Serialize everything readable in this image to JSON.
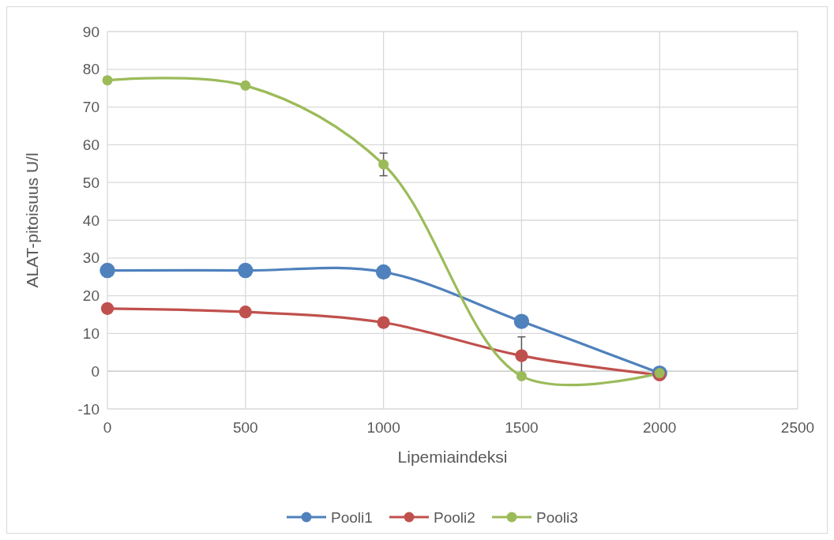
{
  "chart_data": {
    "type": "line",
    "xlabel": "Lipemiaindeksi",
    "ylabel": "ALAT-pitoisuus U/l",
    "x": [
      0,
      500,
      1000,
      1500,
      2000
    ],
    "xlim": [
      0,
      2500
    ],
    "xticks": [
      0,
      500,
      1000,
      1500,
      2000,
      2500
    ],
    "ylim": [
      -10,
      90
    ],
    "yticks": [
      -10,
      0,
      10,
      20,
      30,
      40,
      50,
      60,
      70,
      80,
      90
    ],
    "grid": true,
    "legend": "bottom",
    "marker": "circle",
    "series": [
      {
        "name": "Pooli1",
        "color": "#4f81bd",
        "values": [
          26.7,
          26.7,
          26.3,
          13.2,
          -0.5
        ]
      },
      {
        "name": "Pooli2",
        "color": "#c0504d",
        "values": [
          16.6,
          15.7,
          12.9,
          4.1,
          -1.0
        ],
        "errors": [
          null,
          null,
          null,
          5,
          null
        ]
      },
      {
        "name": "Pooli3",
        "color": "#9bbb59",
        "values": [
          77.1,
          75.7,
          54.8,
          -1.3,
          -0.5
        ],
        "errors": [
          null,
          null,
          3,
          null,
          null
        ]
      }
    ]
  }
}
